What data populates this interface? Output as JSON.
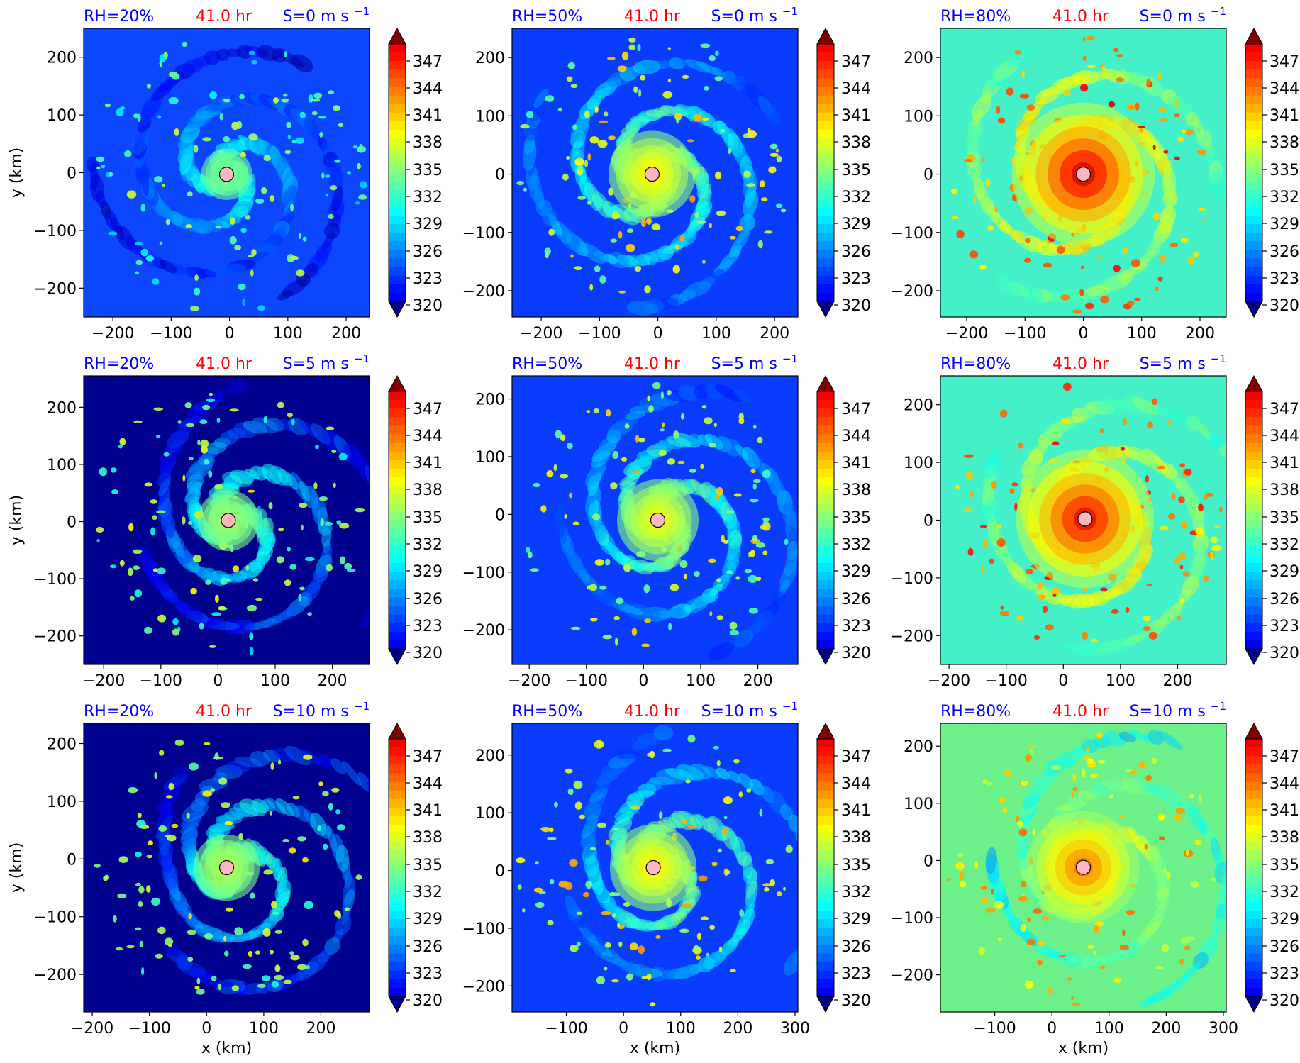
{
  "figure": {
    "time_label": "41.0 hr",
    "xlabel": "x (km)",
    "ylabel": "y (km)",
    "colors": {
      "label_blue": "#0000ff",
      "label_red": "#ff0000",
      "center_marker": "#ffb6c1"
    }
  },
  "colorbar": {
    "ticks": [
      "347",
      "344",
      "341",
      "338",
      "335",
      "332",
      "329",
      "326",
      "323",
      "320"
    ],
    "colormap": "jet",
    "vmin": 320,
    "vmax": 350,
    "extend": "both"
  },
  "chart_data": [
    {
      "type": "heatmap",
      "rh": "RH=20%",
      "time": "41.0 hr",
      "shear": "S=0 m s",
      "shear_exp": "−1",
      "x": [
        -250,
        240
      ],
      "y": [
        -250,
        250
      ],
      "xticks": [
        "−200",
        "−100",
        "0",
        "100",
        "200"
      ],
      "yticks": [
        "200",
        "100",
        "0",
        "−100",
        "−200"
      ],
      "center": [
        -5,
        -3
      ],
      "intensity": 0.0,
      "rot": 0,
      "ecc": 0.0,
      "env": "#0d46ff"
    },
    {
      "type": "heatmap",
      "rh": "RH=50%",
      "time": "41.0 hr",
      "shear": "S=0 m s",
      "shear_exp": "−1",
      "x": [
        -250,
        240
      ],
      "y": [
        -245,
        250
      ],
      "xticks": [
        "−200",
        "−100",
        "0",
        "100",
        "200"
      ],
      "yticks": [
        "200",
        "100",
        "0",
        "−100",
        "−200"
      ],
      "center": [
        -10,
        0
      ],
      "intensity": 0.35,
      "rot": 30,
      "ecc": 0.0,
      "env": "#0a3cff"
    },
    {
      "type": "heatmap",
      "rh": "RH=80%",
      "time": "41.0 hr",
      "shear": "S=0 m s",
      "shear_exp": "−1",
      "x": [
        -245,
        245
      ],
      "y": [
        -245,
        250
      ],
      "xticks": [
        "−200",
        "−100",
        "0",
        "100",
        "200"
      ],
      "yticks": [
        "200",
        "100",
        "0",
        "−100",
        "−200"
      ],
      "center": [
        0,
        0
      ],
      "intensity": 0.9,
      "rot": 60,
      "ecc": 0.0,
      "env": "#44f0c8"
    },
    {
      "type": "heatmap",
      "rh": "RH=20%",
      "time": "41.0 hr",
      "shear": "S=5 m s",
      "shear_exp": "−1",
      "x": [
        -235,
        265
      ],
      "y": [
        -250,
        255
      ],
      "xticks": [
        "−200",
        "−100",
        "0",
        "100",
        "200"
      ],
      "yticks": [
        "200",
        "100",
        "0",
        "−100",
        "−200"
      ],
      "center": [
        18,
        2
      ],
      "intensity": 0.1,
      "rot": 90,
      "ecc": 0.35,
      "env": "#00008f"
    },
    {
      "type": "heatmap",
      "rh": "RH=50%",
      "time": "41.0 hr",
      "shear": "S=5 m s",
      "shear_exp": "−1",
      "x": [
        -230,
        270
      ],
      "y": [
        -260,
        240
      ],
      "xticks": [
        "−200",
        "−100",
        "0",
        "100",
        "200"
      ],
      "yticks": [
        "200",
        "100",
        "0",
        "−100",
        "−200"
      ],
      "center": [
        25,
        -10
      ],
      "intensity": 0.3,
      "rot": 120,
      "ecc": 0.25,
      "env": "#0a3cff"
    },
    {
      "type": "heatmap",
      "rh": "RH=80%",
      "time": "41.0 hr",
      "shear": "S=5 m s",
      "shear_exp": "−1",
      "x": [
        -215,
        285
      ],
      "y": [
        -250,
        250
      ],
      "xticks": [
        "−200",
        "−100",
        "0",
        "100",
        "200"
      ],
      "yticks": [
        "200",
        "100",
        "0",
        "−100",
        "−200"
      ],
      "center": [
        38,
        2
      ],
      "intensity": 0.85,
      "rot": 150,
      "ecc": 0.2,
      "env": "#44f0c8"
    },
    {
      "type": "heatmap",
      "rh": "RH=20%",
      "time": "41.0 hr",
      "shear": "S=10 m s",
      "shear_exp": "−1",
      "x": [
        -215,
        285
      ],
      "y": [
        -265,
        235
      ],
      "xticks": [
        "−200",
        "−100",
        "0",
        "100",
        "200"
      ],
      "yticks": [
        "200",
        "100",
        "0",
        "−100",
        "−200"
      ],
      "center": [
        35,
        -15
      ],
      "intensity": 0.15,
      "rot": 180,
      "ecc": 0.45,
      "env": "#00008f"
    },
    {
      "type": "heatmap",
      "rh": "RH=50%",
      "time": "41.0 hr",
      "shear": "S=10 m s",
      "shear_exp": "−1",
      "x": [
        -195,
        305
      ],
      "y": [
        -245,
        255
      ],
      "xticks": [
        "−100",
        "0",
        "100",
        "200",
        "300"
      ],
      "yticks": [
        "200",
        "100",
        "0",
        "−100",
        "−200"
      ],
      "center": [
        52,
        5
      ],
      "intensity": 0.35,
      "rot": 210,
      "ecc": 0.35,
      "env": "#0a3cff"
    },
    {
      "type": "heatmap",
      "rh": "RH=80%",
      "time": "41.0 hr",
      "shear": "S=10 m s",
      "shear_exp": "−1",
      "x": [
        -195,
        305
      ],
      "y": [
        -265,
        240
      ],
      "xticks": [
        "−100",
        "0",
        "100",
        "200",
        "300"
      ],
      "yticks": [
        "200",
        "100",
        "0",
        "−100",
        "−200"
      ],
      "center": [
        55,
        -12
      ],
      "intensity": 0.6,
      "rot": 240,
      "ecc": 0.3,
      "env": "#6cf08a"
    }
  ]
}
